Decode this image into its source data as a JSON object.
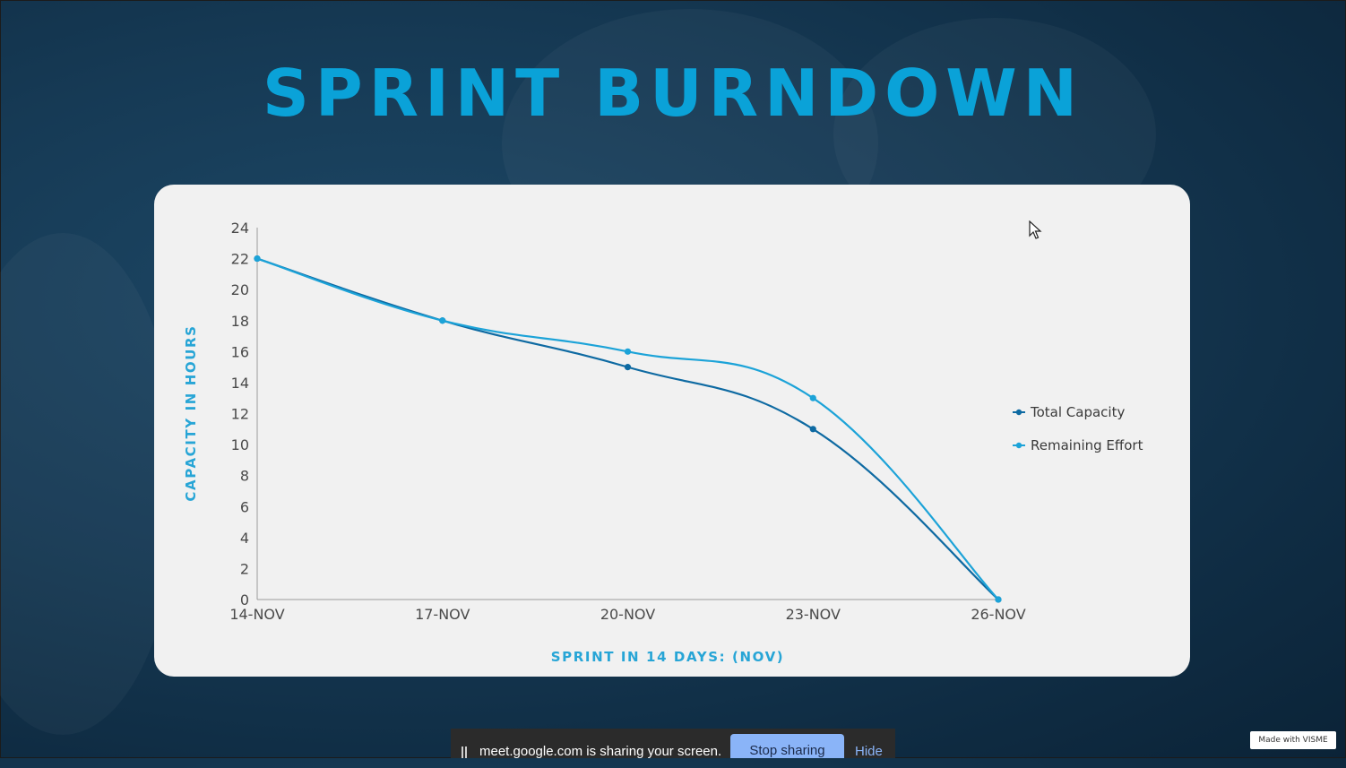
{
  "title": "SPRINT BURNDOWN",
  "chart_data": {
    "type": "line",
    "x": [
      "14-NOV",
      "17-NOV",
      "20-NOV",
      "23-NOV",
      "26-NOV"
    ],
    "series": [
      {
        "name": "Total Capacity",
        "values": [
          22,
          18,
          15,
          11,
          0
        ],
        "color": "#0e6aa2"
      },
      {
        "name": "Remaining Effort",
        "values": [
          22,
          18,
          16,
          13,
          0
        ],
        "color": "#1ca3d8"
      }
    ],
    "xlabel": "SPRINT IN 14 DAYS: (NOV)",
    "ylabel": "CAPACITY IN HOURS",
    "ylim": [
      0,
      24
    ],
    "yticks": [
      0,
      2,
      4,
      6,
      8,
      10,
      12,
      14,
      16,
      18,
      20,
      22,
      24
    ],
    "grid": false,
    "legend": "right"
  },
  "screen_share": {
    "message": "meet.google.com is sharing your screen.",
    "stop_label": "Stop sharing",
    "hide_label": "Hide"
  },
  "watermark": "Made with VISME"
}
